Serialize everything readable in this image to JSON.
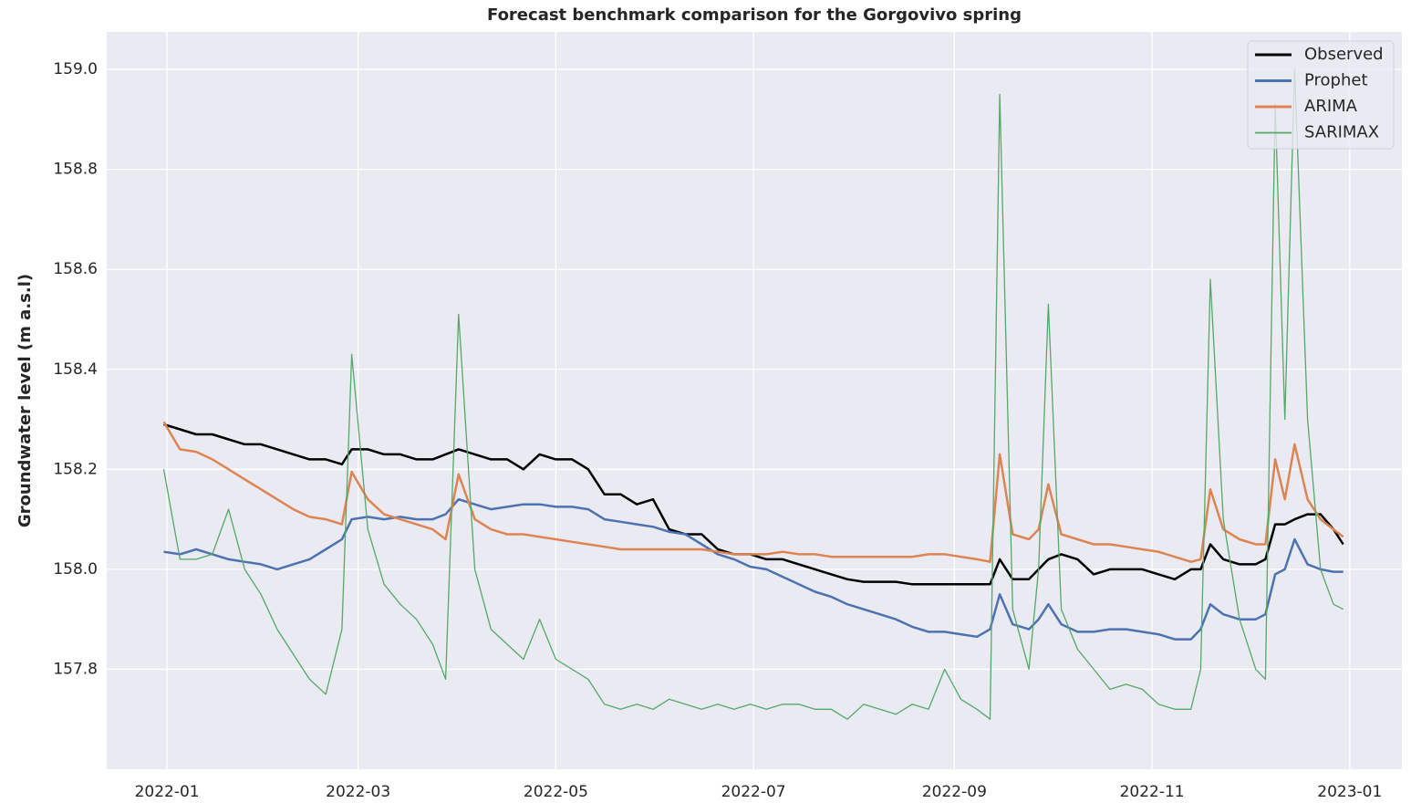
{
  "chart_data": {
    "type": "line",
    "title": "Forecast benchmark comparison for the Gorgovivo spring",
    "ylabel": "Groundwater level (m a.s.l)",
    "grid": true,
    "legend": "upper right",
    "xlim": [
      -18.6,
      381.1
    ],
    "xticks": [
      {
        "value": 0,
        "label": "2022-01"
      },
      {
        "value": 59,
        "label": "2022-03"
      },
      {
        "value": 120,
        "label": "2022-05"
      },
      {
        "value": 181,
        "label": "2022-07"
      },
      {
        "value": 243,
        "label": "2022-09"
      },
      {
        "value": 304,
        "label": "2022-11"
      },
      {
        "value": 365,
        "label": "2023-01"
      }
    ],
    "ylim": [
      157.6,
      159.075
    ],
    "yticks": [
      157.8,
      {
        "value": 158,
        "label": "158.0"
      },
      158.2,
      158.4,
      158.6,
      158.8,
      {
        "value": 159,
        "label": "159.0"
      }
    ],
    "x": [
      -1,
      4,
      9,
      14,
      19,
      24,
      29,
      34,
      39,
      44,
      49,
      54,
      57,
      62,
      67,
      72,
      77,
      82,
      86,
      90,
      95,
      100,
      105,
      110,
      115,
      120,
      125,
      130,
      135,
      140,
      145,
      150,
      155,
      160,
      165,
      170,
      175,
      180,
      185,
      190,
      195,
      200,
      205,
      210,
      215,
      220,
      225,
      230,
      235,
      240,
      245,
      250,
      254,
      257,
      261,
      266,
      269,
      272,
      276,
      281,
      286,
      291,
      296,
      301,
      306,
      311,
      316,
      319,
      322,
      326,
      331,
      336,
      339,
      342,
      345,
      348,
      352,
      356,
      360,
      363
    ],
    "series": [
      {
        "name": "Observed",
        "color": "#000000",
        "width": 2.5,
        "values": [
          158.29,
          158.28,
          158.27,
          158.27,
          158.26,
          158.25,
          158.25,
          158.24,
          158.23,
          158.22,
          158.22,
          158.21,
          158.24,
          158.24,
          158.23,
          158.23,
          158.22,
          158.22,
          158.23,
          158.24,
          158.23,
          158.22,
          158.22,
          158.2,
          158.23,
          158.22,
          158.22,
          158.2,
          158.15,
          158.15,
          158.13,
          158.14,
          158.08,
          158.07,
          158.07,
          158.04,
          158.03,
          158.03,
          158.02,
          158.02,
          158.01,
          158.0,
          157.99,
          157.98,
          157.975,
          157.975,
          157.975,
          157.97,
          157.97,
          157.97,
          157.97,
          157.97,
          157.97,
          158.02,
          157.98,
          157.98,
          158.0,
          158.02,
          158.03,
          158.02,
          157.99,
          158.0,
          158.0,
          158.0,
          157.99,
          157.98,
          158.0,
          158.0,
          158.05,
          158.02,
          158.01,
          158.01,
          158.02,
          158.09,
          158.09,
          158.1,
          158.11,
          158.11,
          158.08,
          158.05
        ]
      },
      {
        "name": "Prophet",
        "color": "#4c72b0",
        "width": 2.5,
        "values": [
          158.035,
          158.03,
          158.04,
          158.03,
          158.02,
          158.015,
          158.01,
          158.0,
          158.01,
          158.02,
          158.04,
          158.06,
          158.1,
          158.105,
          158.1,
          158.105,
          158.1,
          158.1,
          158.11,
          158.14,
          158.13,
          158.12,
          158.125,
          158.13,
          158.13,
          158.125,
          158.125,
          158.12,
          158.1,
          158.095,
          158.09,
          158.085,
          158.075,
          158.07,
          158.05,
          158.03,
          158.02,
          158.005,
          158.0,
          157.985,
          157.97,
          157.955,
          157.945,
          157.93,
          157.92,
          157.91,
          157.9,
          157.885,
          157.875,
          157.875,
          157.87,
          157.865,
          157.88,
          157.95,
          157.89,
          157.88,
          157.9,
          157.93,
          157.89,
          157.875,
          157.875,
          157.88,
          157.88,
          157.875,
          157.87,
          157.86,
          157.86,
          157.88,
          157.93,
          157.91,
          157.9,
          157.9,
          157.91,
          157.99,
          158.0,
          158.06,
          158.01,
          158.0,
          157.995,
          157.995
        ]
      },
      {
        "name": "ARIMA",
        "color": "#dd8452",
        "width": 2.5,
        "values": [
          158.295,
          158.24,
          158.235,
          158.22,
          158.2,
          158.18,
          158.16,
          158.14,
          158.12,
          158.105,
          158.1,
          158.09,
          158.195,
          158.14,
          158.11,
          158.1,
          158.09,
          158.08,
          158.06,
          158.19,
          158.1,
          158.08,
          158.07,
          158.07,
          158.065,
          158.06,
          158.055,
          158.05,
          158.045,
          158.04,
          158.04,
          158.04,
          158.04,
          158.04,
          158.04,
          158.035,
          158.03,
          158.03,
          158.03,
          158.035,
          158.03,
          158.03,
          158.025,
          158.025,
          158.025,
          158.025,
          158.025,
          158.025,
          158.03,
          158.03,
          158.025,
          158.02,
          158.015,
          158.23,
          158.07,
          158.06,
          158.08,
          158.17,
          158.07,
          158.06,
          158.05,
          158.05,
          158.045,
          158.04,
          158.035,
          158.025,
          158.015,
          158.02,
          158.16,
          158.08,
          158.06,
          158.05,
          158.05,
          158.22,
          158.14,
          158.25,
          158.14,
          158.1,
          158.08,
          158.065
        ]
      },
      {
        "name": "SARIMAX",
        "color": "#55a868",
        "width": 1.3,
        "values": [
          158.2,
          158.02,
          158.02,
          158.03,
          158.12,
          158.0,
          157.95,
          157.88,
          157.83,
          157.78,
          157.75,
          157.88,
          158.43,
          158.08,
          157.97,
          157.93,
          157.9,
          157.85,
          157.78,
          158.51,
          158.0,
          157.88,
          157.85,
          157.82,
          157.9,
          157.82,
          157.8,
          157.78,
          157.73,
          157.72,
          157.73,
          157.72,
          157.74,
          157.73,
          157.72,
          157.73,
          157.72,
          157.73,
          157.72,
          157.73,
          157.73,
          157.72,
          157.72,
          157.7,
          157.73,
          157.72,
          157.71,
          157.73,
          157.72,
          157.8,
          157.74,
          157.72,
          157.7,
          158.95,
          157.92,
          157.8,
          158.0,
          158.53,
          157.92,
          157.84,
          157.8,
          157.76,
          157.77,
          157.76,
          157.73,
          157.72,
          157.72,
          157.8,
          158.58,
          158.1,
          157.9,
          157.8,
          157.78,
          158.93,
          158.3,
          159.0,
          158.3,
          158.0,
          157.93,
          157.92
        ]
      }
    ]
  }
}
